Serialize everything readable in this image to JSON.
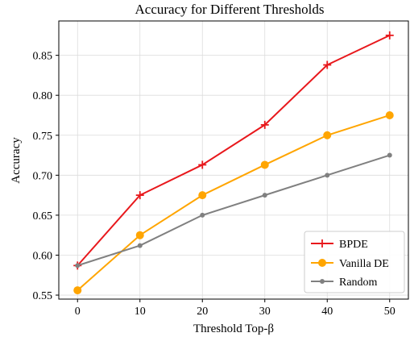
{
  "chart_data": {
    "type": "line",
    "title": "Accuracy for Different Thresholds",
    "xlabel": "Threshold Top-β",
    "ylabel": "Accuracy",
    "x": [
      0,
      10,
      20,
      30,
      40,
      50
    ],
    "xlim": [
      -3,
      53
    ],
    "ylim": [
      0.545,
      0.893
    ],
    "xticks": [
      0,
      10,
      20,
      30,
      40,
      50
    ],
    "yticks": [
      0.55,
      0.6,
      0.65,
      0.7,
      0.75,
      0.8,
      0.85
    ],
    "ytick_labels": [
      "0.55",
      "0.60",
      "0.65",
      "0.70",
      "0.75",
      "0.80",
      "0.85"
    ],
    "grid": true,
    "legend_position": "bottom-right",
    "series": [
      {
        "name": "BPDE",
        "values": [
          0.587,
          0.675,
          0.713,
          0.763,
          0.838,
          0.875
        ],
        "color": "#e8181c",
        "marker": "plus"
      },
      {
        "name": "Vanilla DE",
        "values": [
          0.556,
          0.625,
          0.675,
          0.713,
          0.75,
          0.775
        ],
        "color": "#ffa500",
        "marker": "circle-large"
      },
      {
        "name": "Random",
        "values": [
          0.587,
          0.612,
          0.65,
          0.675,
          0.7,
          0.725
        ],
        "color": "#808080",
        "marker": "circle-small"
      }
    ]
  }
}
